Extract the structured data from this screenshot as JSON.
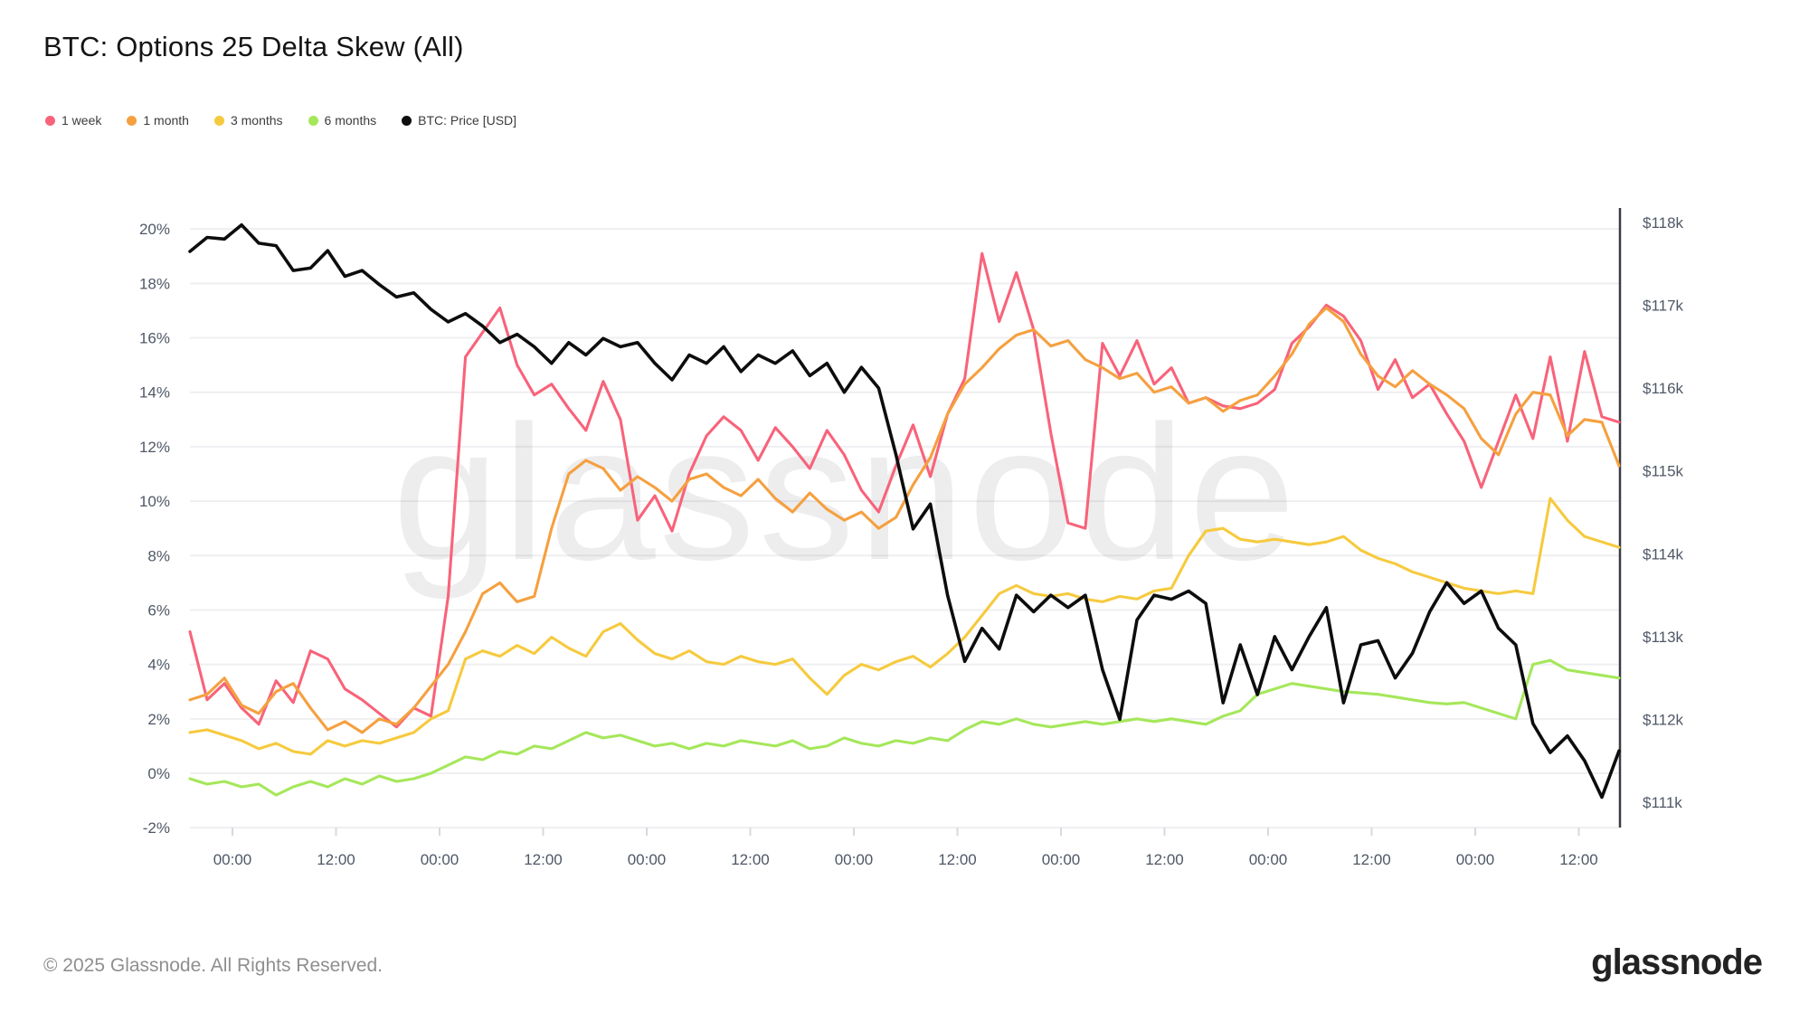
{
  "header": {
    "title": "BTC: Options 25 Delta Skew (All)"
  },
  "legend": [
    {
      "label": "1 week",
      "color": "#f8637a"
    },
    {
      "label": "1 month",
      "color": "#f5a03f"
    },
    {
      "label": "3 months",
      "color": "#f6ca3e"
    },
    {
      "label": "6 months",
      "color": "#a5e75a"
    },
    {
      "label": "BTC: Price [USD]",
      "color": "#0d0d0d"
    }
  ],
  "watermark": "glassnode",
  "footer": {
    "copyright": "© 2025 Glassnode. All Rights Reserved.",
    "brand": "glassnode"
  },
  "chart_data": {
    "type": "line",
    "title": "BTC: Options 25 Delta Skew (All)",
    "grid": "horizontal-only",
    "legend_position": "top-left",
    "x_unit": "time (12h ticks over ~7 days)",
    "x_tick_labels": [
      "00:00",
      "12:00",
      "00:00",
      "12:00",
      "00:00",
      "12:00",
      "00:00",
      "12:00",
      "00:00",
      "12:00",
      "00:00",
      "12:00",
      "00:00",
      "12:00"
    ],
    "left_axis": {
      "title": "25 delta skew",
      "unit": "%",
      "min": -2,
      "max": 20,
      "tick_step": 2,
      "tick_labels": [
        "20%",
        "18%",
        "16%",
        "14%",
        "12%",
        "10%",
        "8%",
        "6%",
        "4%",
        "2%",
        "0%",
        "-2%"
      ]
    },
    "right_axis": {
      "title": "BTC price",
      "unit": "$k",
      "min": 111,
      "max": 118,
      "tick_step": 1,
      "tick_labels": [
        "$118k",
        "$117k",
        "$116k",
        "$115k",
        "$114k",
        "$113k",
        "$112k",
        "$111k"
      ]
    },
    "series": [
      {
        "name": "1 week",
        "color": "#f8637a",
        "axis": "left",
        "unit": "%",
        "values": [
          5.2,
          2.7,
          3.3,
          2.4,
          1.8,
          3.4,
          2.6,
          4.5,
          4.2,
          3.1,
          2.7,
          2.2,
          1.7,
          2.4,
          2.1,
          6.5,
          15.3,
          16.2,
          17.1,
          15.0,
          13.9,
          14.3,
          13.4,
          12.6,
          14.4,
          13.0,
          9.3,
          10.2,
          8.9,
          11.0,
          12.4,
          13.1,
          12.6,
          11.5,
          12.7,
          12.0,
          11.2,
          12.6,
          11.7,
          10.4,
          9.6,
          11.3,
          12.8,
          10.9,
          13.2,
          14.5,
          19.1,
          16.6,
          18.4,
          16.3,
          12.5,
          9.2,
          9.0,
          15.8,
          14.6,
          15.9,
          14.3,
          14.9,
          13.6,
          13.8,
          13.5,
          13.4,
          13.6,
          14.1,
          15.8,
          16.4,
          17.2,
          16.8,
          15.9,
          14.1,
          15.2,
          13.8,
          14.3,
          13.2,
          12.2,
          10.5,
          12.2,
          13.9,
          12.3,
          15.3,
          12.2,
          15.5,
          13.1,
          12.9
        ]
      },
      {
        "name": "1 month",
        "color": "#f5a03f",
        "axis": "left",
        "unit": "%",
        "values": [
          2.7,
          2.9,
          3.5,
          2.5,
          2.2,
          3.0,
          3.3,
          2.4,
          1.6,
          1.9,
          1.5,
          2.0,
          1.8,
          2.4,
          3.2,
          4.0,
          5.2,
          6.6,
          7.0,
          6.3,
          6.5,
          9.0,
          11.0,
          11.5,
          11.2,
          10.4,
          10.9,
          10.5,
          10.0,
          10.8,
          11.0,
          10.5,
          10.2,
          10.8,
          10.1,
          9.6,
          10.3,
          9.7,
          9.3,
          9.6,
          9.0,
          9.4,
          10.6,
          11.6,
          13.2,
          14.3,
          14.9,
          15.6,
          16.1,
          16.3,
          15.7,
          15.9,
          15.2,
          14.9,
          14.5,
          14.7,
          14.0,
          14.2,
          13.6,
          13.8,
          13.3,
          13.7,
          13.9,
          14.6,
          15.4,
          16.5,
          17.1,
          16.6,
          15.4,
          14.6,
          14.2,
          14.8,
          14.3,
          13.9,
          13.4,
          12.3,
          11.7,
          13.2,
          14.0,
          13.9,
          12.4,
          13.0,
          12.9,
          11.3
        ]
      },
      {
        "name": "3 months",
        "color": "#f6ca3e",
        "axis": "left",
        "unit": "%",
        "values": [
          1.5,
          1.6,
          1.4,
          1.2,
          0.9,
          1.1,
          0.8,
          0.7,
          1.2,
          1.0,
          1.2,
          1.1,
          1.3,
          1.5,
          2.0,
          2.3,
          4.2,
          4.5,
          4.3,
          4.7,
          4.4,
          5.0,
          4.6,
          4.3,
          5.2,
          5.5,
          4.9,
          4.4,
          4.2,
          4.5,
          4.1,
          4.0,
          4.3,
          4.1,
          4.0,
          4.2,
          3.5,
          2.9,
          3.6,
          4.0,
          3.8,
          4.1,
          4.3,
          3.9,
          4.4,
          5.0,
          5.8,
          6.6,
          6.9,
          6.6,
          6.5,
          6.6,
          6.4,
          6.3,
          6.5,
          6.4,
          6.7,
          6.8,
          8.0,
          8.9,
          9.0,
          8.6,
          8.5,
          8.6,
          8.5,
          8.4,
          8.5,
          8.7,
          8.2,
          7.9,
          7.7,
          7.4,
          7.2,
          7.0,
          6.8,
          6.7,
          6.6,
          6.7,
          6.6,
          10.1,
          9.3,
          8.7,
          8.5,
          8.3
        ]
      },
      {
        "name": "6 months",
        "color": "#a5e75a",
        "axis": "left",
        "unit": "%",
        "values": [
          -0.2,
          -0.4,
          -0.3,
          -0.5,
          -0.4,
          -0.8,
          -0.5,
          -0.3,
          -0.5,
          -0.2,
          -0.4,
          -0.1,
          -0.3,
          -0.2,
          0.0,
          0.3,
          0.6,
          0.5,
          0.8,
          0.7,
          1.0,
          0.9,
          1.2,
          1.5,
          1.3,
          1.4,
          1.2,
          1.0,
          1.1,
          0.9,
          1.1,
          1.0,
          1.2,
          1.1,
          1.0,
          1.2,
          0.9,
          1.0,
          1.3,
          1.1,
          1.0,
          1.2,
          1.1,
          1.3,
          1.2,
          1.6,
          1.9,
          1.8,
          2.0,
          1.8,
          1.7,
          1.8,
          1.9,
          1.8,
          1.9,
          2.0,
          1.9,
          2.0,
          1.9,
          1.8,
          2.1,
          2.3,
          2.9,
          3.1,
          3.3,
          3.2,
          3.1,
          3.0,
          2.95,
          2.9,
          2.8,
          2.7,
          2.6,
          2.55,
          2.6,
          2.4,
          2.2,
          2.0,
          4.0,
          4.15,
          3.8,
          3.7,
          3.6,
          3.5
        ]
      },
      {
        "name": "BTC: Price [USD]",
        "color": "#0d0d0d",
        "axis": "right",
        "unit": "$k",
        "values": [
          117.65,
          117.82,
          117.8,
          117.97,
          117.75,
          117.72,
          117.42,
          117.45,
          117.66,
          117.35,
          117.42,
          117.25,
          117.1,
          117.15,
          116.95,
          116.8,
          116.9,
          116.75,
          116.55,
          116.65,
          116.5,
          116.3,
          116.55,
          116.4,
          116.6,
          116.5,
          116.55,
          116.3,
          116.1,
          116.4,
          116.3,
          116.5,
          116.2,
          116.4,
          116.3,
          116.45,
          116.15,
          116.3,
          115.95,
          116.25,
          116.0,
          115.2,
          114.3,
          114.6,
          113.5,
          112.7,
          113.1,
          112.85,
          113.5,
          113.3,
          113.5,
          113.35,
          113.5,
          112.6,
          112.0,
          113.2,
          113.5,
          113.45,
          113.55,
          113.4,
          112.2,
          112.9,
          112.3,
          113.0,
          112.6,
          113.0,
          113.35,
          112.2,
          112.9,
          112.95,
          112.5,
          112.8,
          113.3,
          113.65,
          113.4,
          113.55,
          113.1,
          112.9,
          111.95,
          111.6,
          111.8,
          111.5,
          111.06,
          111.62
        ]
      }
    ]
  }
}
